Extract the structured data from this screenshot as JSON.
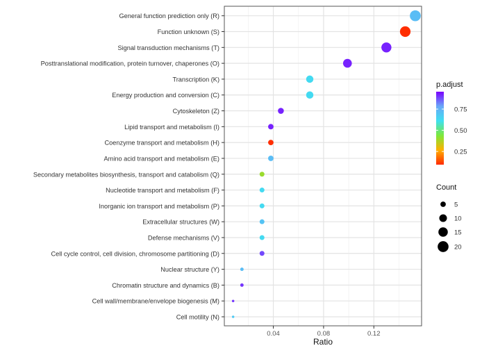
{
  "chart_data": {
    "type": "scatter",
    "subtype": "dot-plot",
    "title": "",
    "xlabel": "Ratio",
    "ylabel": "",
    "xlim": [
      0.001,
      0.158
    ],
    "x_ticks": [
      0.04,
      0.08,
      0.12
    ],
    "x_tick_labels": [
      "0.04",
      "0.08",
      "0.12"
    ],
    "grid": true,
    "categories": [
      "General function prediction only (R)",
      "Function unknown (S)",
      "Signal transduction mechanisms (T)",
      "Posttranslational modification, protein turnover, chaperones (O)",
      "Transcription (K)",
      "Energy production and conversion (C)",
      "Cytoskeleton (Z)",
      "Lipid transport and metabolism (I)",
      "Coenzyme transport and metabolism (H)",
      "Amino acid transport and metabolism (E)",
      "Secondary metabolites biosynthesis, transport and catabolism (Q)",
      "Nucleotide transport and metabolism (F)",
      "Inorganic ion transport and metabolism (P)",
      "Extracellular structures (W)",
      "Defense mechanisms (V)",
      "Cell cycle control, cell division, chromosome partitioning (D)",
      "Nuclear structure (Y)",
      "Chromatin structure and dynamics (B)",
      "Cell wall/membrane/envelope biogenesis (M)",
      "Cell motility (N)"
    ],
    "ratio": [
      0.153,
      0.145,
      0.13,
      0.099,
      0.069,
      0.069,
      0.046,
      0.038,
      0.038,
      0.038,
      0.031,
      0.031,
      0.031,
      0.031,
      0.031,
      0.031,
      0.015,
      0.015,
      0.008,
      0.008
    ],
    "count": [
      20,
      19,
      17,
      13,
      9,
      9,
      6,
      5,
      5,
      5,
      4,
      4,
      4,
      4,
      4,
      4,
      2,
      2,
      1,
      1
    ],
    "p_adjust": [
      0.72,
      0.1,
      0.92,
      0.92,
      0.63,
      0.63,
      0.92,
      0.92,
      0.1,
      0.72,
      0.4,
      0.63,
      0.63,
      0.7,
      0.63,
      0.88,
      0.72,
      0.9,
      0.9,
      0.68
    ],
    "color_legend": {
      "title": "p.adjust",
      "range": [
        0.095,
        0.955
      ],
      "ticks": [
        0.25,
        0.5,
        0.75
      ],
      "tick_labels": [
        "0.25",
        "0.50",
        "0.75"
      ],
      "colors": [
        "#ff2a00",
        "#ffb000",
        "#7de83a",
        "#3fe0f0",
        "#6aa8f8",
        "#7a00ff"
      ],
      "placement": "right"
    },
    "size_legend": {
      "title": "Count",
      "values": [
        5,
        10,
        15,
        20
      ],
      "labels": [
        "5",
        "10",
        "15",
        "20"
      ],
      "placement": "right"
    }
  }
}
